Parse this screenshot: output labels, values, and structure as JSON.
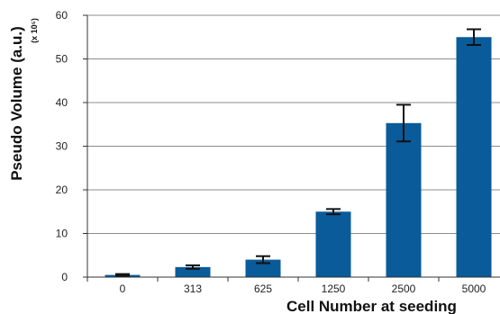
{
  "chart_data": {
    "type": "bar",
    "title": "",
    "xlabel": "Cell Number at seeding",
    "ylabel": "Pseudo Volume (a.u.)",
    "ylabel_unit": "(x 10⁵)",
    "categories": [
      "0",
      "313",
      "625",
      "1250",
      "2500",
      "5000"
    ],
    "values": [
      0.5,
      2.3,
      4.0,
      15.0,
      35.3,
      55.0
    ],
    "error": [
      0.2,
      0.4,
      0.8,
      0.6,
      4.2,
      1.8
    ],
    "ylim": [
      0,
      60
    ],
    "yticks": [
      "0",
      "10",
      "20",
      "30",
      "40",
      "50",
      "60"
    ],
    "grid": true,
    "colors": {
      "bar": "#0a5b99",
      "grid": "#8c8c8c",
      "axis": "#333333",
      "error": "#111111"
    }
  }
}
